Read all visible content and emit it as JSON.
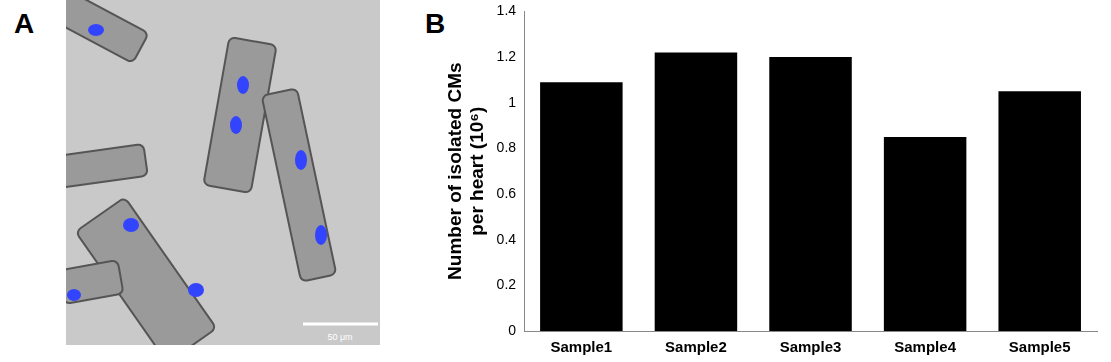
{
  "panel_labels": [
    "A",
    "B"
  ],
  "image_panel": {
    "scale_bar_label": "50 μm"
  },
  "chart_data": {
    "type": "bar",
    "y_label": [
      "Number of isolated CMs",
      "per heart (10⁶)"
    ],
    "categories": [
      "Sample1",
      "Sample2",
      "Sample3",
      "Sample4",
      "Sample5"
    ],
    "values": [
      1.09,
      1.22,
      1.2,
      0.85,
      1.05
    ],
    "color": "#000000",
    "ylim": [
      0,
      1.4
    ],
    "yticks": [
      0,
      0.2,
      0.4,
      0.6,
      0.8,
      1,
      1.2,
      1.4
    ],
    "grid": false
  }
}
